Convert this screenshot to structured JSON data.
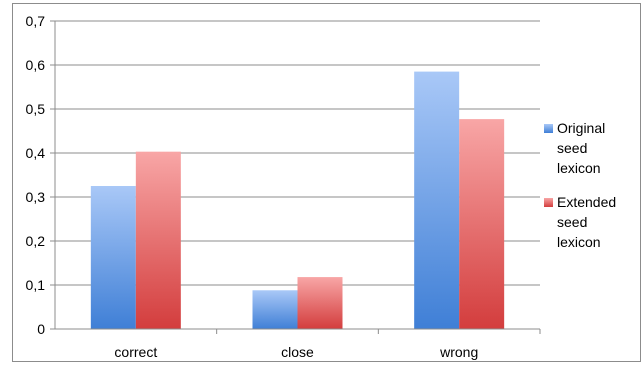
{
  "chart_data": {
    "type": "bar",
    "categories": [
      "correct",
      "close",
      "wrong"
    ],
    "series": [
      {
        "name": "Original seed lexicon",
        "label_lines": "Original\nseed\nlexicon",
        "values": [
          0.325,
          0.088,
          0.585
        ],
        "color_top": "#a9c8f7",
        "color_bottom": "#3f7fd6"
      },
      {
        "name": "Extended seed lexicon",
        "label_lines": "Extended\nseed\nlexicon",
        "values": [
          0.403,
          0.118,
          0.477
        ],
        "color_top": "#f8a6a6",
        "color_bottom": "#d33d3d"
      }
    ],
    "ylim": [
      0,
      0.7
    ],
    "yticks": [
      "0",
      "0,1",
      "0,2",
      "0,3",
      "0,4",
      "0,5",
      "0,6",
      "0,7"
    ],
    "grid": true,
    "legend_position": "right",
    "title": "",
    "xlabel": "",
    "ylabel": ""
  }
}
